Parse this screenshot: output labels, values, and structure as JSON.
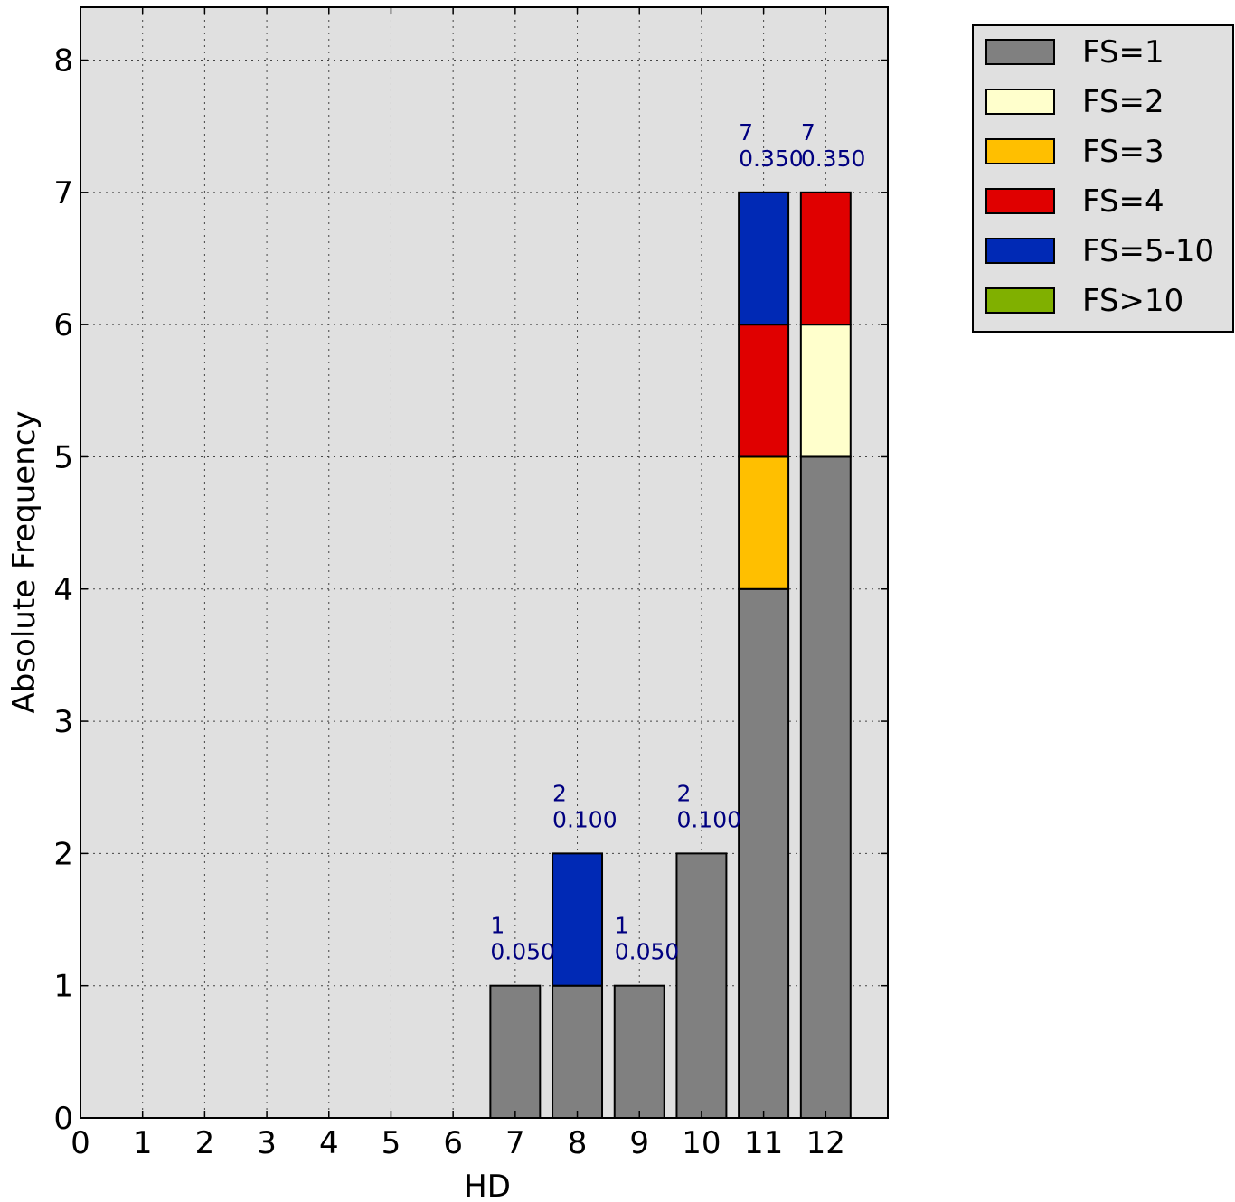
{
  "chart_data": {
    "type": "bar",
    "stacked": true,
    "title": "",
    "xlabel": "HD",
    "ylabel": "Absolute Frequency",
    "x": [
      0,
      1,
      2,
      3,
      4,
      5,
      6,
      7,
      8,
      9,
      10,
      11,
      12
    ],
    "xlim": [
      0,
      13
    ],
    "ylim": [
      0,
      8.4
    ],
    "yticks": [
      0,
      1,
      2,
      3,
      4,
      5,
      6,
      7,
      8
    ],
    "grid": true,
    "legend_position": "outside-top-right",
    "series": [
      {
        "name": "FS=1",
        "color": "#808080",
        "values": [
          0,
          0,
          0,
          0,
          0,
          0,
          0,
          1,
          1,
          1,
          2,
          4,
          5
        ]
      },
      {
        "name": "FS=2",
        "color": "#ffffcc",
        "values": [
          0,
          0,
          0,
          0,
          0,
          0,
          0,
          0,
          0,
          0,
          0,
          0,
          1
        ]
      },
      {
        "name": "FS=3",
        "color": "#ffbf00",
        "values": [
          0,
          0,
          0,
          0,
          0,
          0,
          0,
          0,
          0,
          0,
          0,
          1,
          0
        ]
      },
      {
        "name": "FS=4",
        "color": "#e00000",
        "values": [
          0,
          0,
          0,
          0,
          0,
          0,
          0,
          0,
          0,
          0,
          0,
          1,
          1
        ]
      },
      {
        "name": "FS=5-10",
        "color": "#0029b5",
        "values": [
          0,
          0,
          0,
          0,
          0,
          0,
          0,
          0,
          1,
          0,
          0,
          1,
          0
        ]
      },
      {
        "name": "FS>10",
        "color": "#80b000",
        "values": [
          0,
          0,
          0,
          0,
          0,
          0,
          0,
          0,
          0,
          0,
          0,
          0,
          0
        ]
      }
    ],
    "annotations": [
      {
        "x": 7,
        "count": "1",
        "fraction": "0.050"
      },
      {
        "x": 8,
        "count": "2",
        "fraction": "0.100"
      },
      {
        "x": 9,
        "count": "1",
        "fraction": "0.050"
      },
      {
        "x": 10,
        "count": "2",
        "fraction": "0.100"
      },
      {
        "x": 11,
        "count": "7",
        "fraction": "0.350"
      },
      {
        "x": 12,
        "count": "7",
        "fraction": "0.350"
      }
    ],
    "plot_background": "#e0e0e0"
  }
}
